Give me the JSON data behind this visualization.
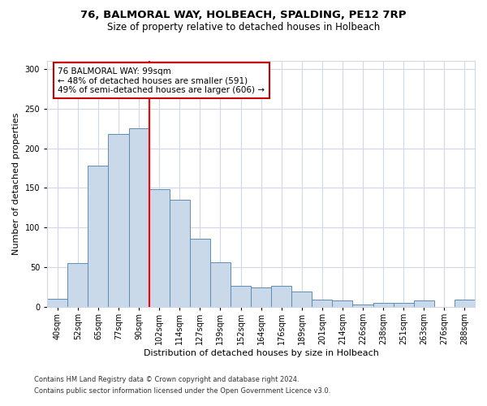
{
  "title_line1": "76, BALMORAL WAY, HOLBEACH, SPALDING, PE12 7RP",
  "title_line2": "Size of property relative to detached houses in Holbeach",
  "xlabel": "Distribution of detached houses by size in Holbeach",
  "ylabel": "Number of detached properties",
  "categories": [
    "40sqm",
    "52sqm",
    "65sqm",
    "77sqm",
    "90sqm",
    "102sqm",
    "114sqm",
    "127sqm",
    "139sqm",
    "152sqm",
    "164sqm",
    "176sqm",
    "189sqm",
    "201sqm",
    "214sqm",
    "226sqm",
    "238sqm",
    "251sqm",
    "263sqm",
    "276sqm",
    "288sqm"
  ],
  "values": [
    10,
    55,
    178,
    218,
    225,
    148,
    135,
    86,
    56,
    27,
    25,
    27,
    20,
    9,
    8,
    3,
    5,
    5,
    8,
    0,
    9
  ],
  "bar_color": "#c9d9ea",
  "bar_edge_color": "#5b8db8",
  "red_line_label": "76 BALMORAL WAY: 99sqm",
  "annotation_line2": "← 48% of detached houses are smaller (591)",
  "annotation_line3": "49% of semi-detached houses are larger (606) →",
  "ylim": [
    0,
    310
  ],
  "yticks": [
    0,
    50,
    100,
    150,
    200,
    250,
    300
  ],
  "footnote1": "Contains HM Land Registry data © Crown copyright and database right 2024.",
  "footnote2": "Contains public sector information licensed under the Open Government Licence v3.0.",
  "background_color": "#ffffff",
  "grid_color": "#d0d8e8",
  "annotation_box_color": "#ffffff",
  "annotation_box_edge": "#cc0000",
  "title1_fontsize": 9.5,
  "title2_fontsize": 8.5,
  "ylabel_fontsize": 8,
  "xlabel_fontsize": 8,
  "annot_fontsize": 7.5,
  "tick_fontsize": 7,
  "footnote_fontsize": 6
}
